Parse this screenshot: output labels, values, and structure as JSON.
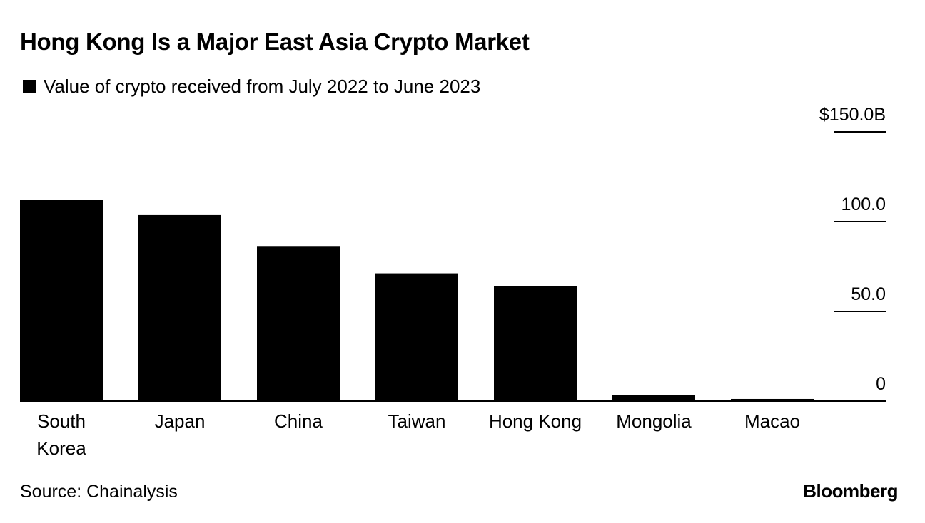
{
  "title": "Hong Kong Is a Major East Asia Crypto Market",
  "legend": {
    "label": "Value of crypto received from July 2022 to June 2023",
    "color": "#000000"
  },
  "source": "Source: Chainalysis",
  "brand": "Bloomberg",
  "chart_data": {
    "type": "bar",
    "title": "Hong Kong Is a Major East Asia Crypto Market",
    "xlabel": "",
    "ylabel": "",
    "ylim": [
      0,
      150
    ],
    "yticks": [
      {
        "value": 0,
        "label": "0"
      },
      {
        "value": 50,
        "label": "50.0"
      },
      {
        "value": 100,
        "label": "100.0"
      },
      {
        "value": 150,
        "label": "$150.0B"
      }
    ],
    "categories": [
      "South Korea",
      "Japan",
      "China",
      "Taiwan",
      "Hong Kong",
      "Mongolia",
      "Macao"
    ],
    "category_lines": [
      [
        "South",
        "Korea"
      ],
      [
        "Japan"
      ],
      [
        "China"
      ],
      [
        "Taiwan"
      ],
      [
        "Hong Kong"
      ],
      [
        "Mongolia"
      ],
      [
        "Macao"
      ]
    ],
    "series": [
      {
        "name": "Value of crypto received from July 2022 to June 2023",
        "values": [
          112.0,
          103.6,
          86.4,
          71.2,
          64.0,
          3.2,
          1.2
        ]
      }
    ],
    "grid": false,
    "legend_position": "top-left"
  }
}
